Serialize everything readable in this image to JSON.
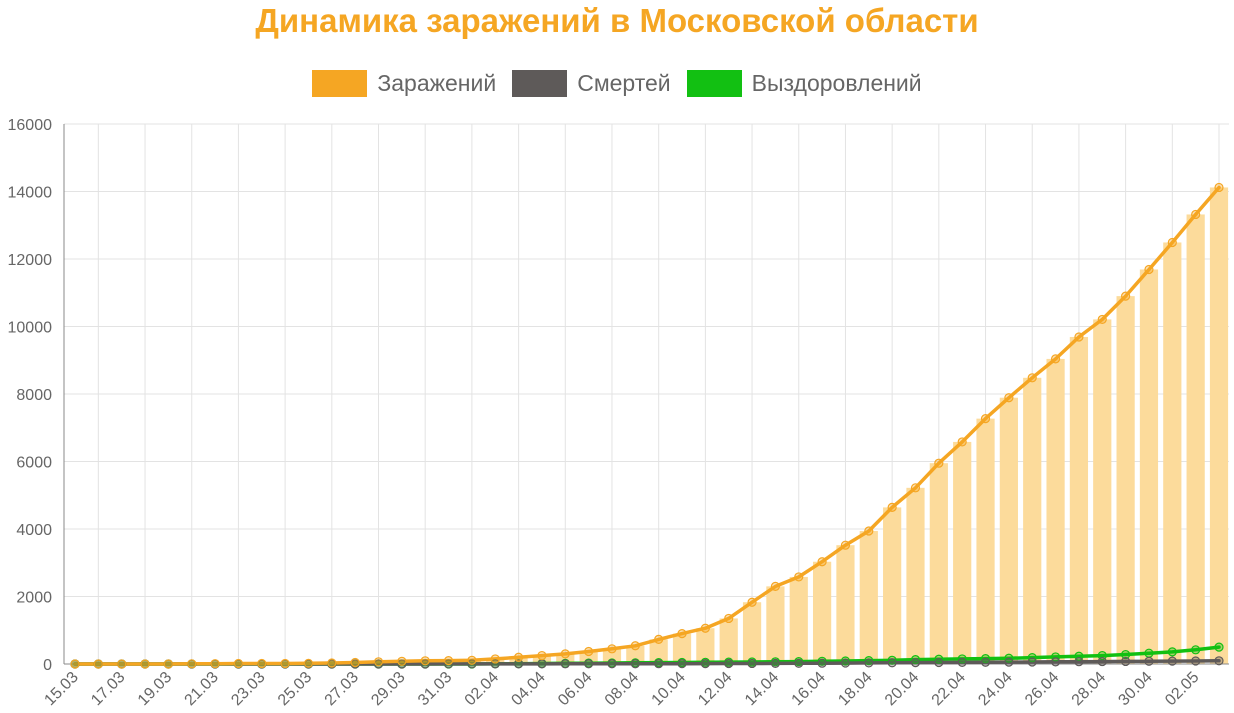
{
  "chart_data": {
    "type": "bar",
    "title": "Динамика заражений в Московской области",
    "title_color": "#F5A623",
    "xlabel": "",
    "ylabel": "",
    "ylim": [
      0,
      16000
    ],
    "yticks": [
      0,
      2000,
      4000,
      6000,
      8000,
      10000,
      12000,
      14000,
      16000
    ],
    "grid": true,
    "legend_position": "top-center",
    "categories": [
      "15.03",
      "16.03",
      "17.03",
      "18.03",
      "19.03",
      "20.03",
      "21.03",
      "22.03",
      "23.03",
      "24.03",
      "25.03",
      "26.03",
      "27.03",
      "28.03",
      "29.03",
      "30.03",
      "31.03",
      "01.04",
      "02.04",
      "03.04",
      "04.04",
      "05.04",
      "06.04",
      "07.04",
      "08.04",
      "09.04",
      "10.04",
      "11.04",
      "12.04",
      "13.04",
      "14.04",
      "15.04",
      "16.04",
      "17.04",
      "18.04",
      "19.04",
      "20.04",
      "21.04",
      "22.04",
      "23.04",
      "24.04",
      "25.04",
      "26.04",
      "27.04",
      "28.04",
      "29.04",
      "30.04",
      "01.05",
      "02.05",
      "03.05"
    ],
    "tick_labels": [
      "15.03",
      "17.03",
      "19.03",
      "21.03",
      "23.03",
      "25.03",
      "27.03",
      "29.03",
      "31.03",
      "02.04",
      "04.04",
      "06.04",
      "08.04",
      "10.04",
      "12.04",
      "14.04",
      "16.04",
      "18.04",
      "20.04",
      "22.04",
      "24.04",
      "26.04",
      "28.04",
      "30.04",
      "02.05"
    ],
    "series": [
      {
        "name": "Заражений",
        "color": "#F5A623",
        "bar_color": "#FCDB9B",
        "values": [
          0,
          0,
          0,
          0,
          0,
          5,
          10,
          15,
          15,
          15,
          20,
          30,
          45,
          65,
          80,
          95,
          100,
          110,
          150,
          200,
          250,
          300,
          370,
          450,
          540,
          730,
          900,
          1060,
          1350,
          1830,
          2300,
          2580,
          3030,
          3520,
          3940,
          4640,
          5220,
          5950,
          6580,
          7270,
          7890,
          8480,
          9040,
          9690,
          10210,
          10900,
          11690,
          12490,
          13320,
          14120
        ]
      },
      {
        "name": "Смертей",
        "color": "#5E5A59",
        "values": [
          0,
          0,
          0,
          0,
          0,
          0,
          0,
          0,
          0,
          0,
          0,
          0,
          0,
          0,
          1,
          1,
          2,
          2,
          3,
          3,
          4,
          5,
          6,
          7,
          8,
          9,
          10,
          12,
          14,
          16,
          18,
          21,
          24,
          28,
          32,
          36,
          40,
          44,
          48,
          52,
          56,
          60,
          64,
          68,
          72,
          76,
          80,
          85,
          90,
          95
        ]
      },
      {
        "name": "Выздоровлений",
        "color": "#12C012",
        "values": [
          0,
          0,
          0,
          0,
          0,
          0,
          0,
          0,
          0,
          0,
          0,
          0,
          0,
          0,
          0,
          0,
          0,
          0,
          5,
          10,
          15,
          20,
          25,
          30,
          35,
          40,
          45,
          50,
          55,
          60,
          65,
          70,
          80,
          90,
          100,
          110,
          130,
          140,
          150,
          160,
          170,
          190,
          210,
          230,
          250,
          280,
          320,
          360,
          420,
          500
        ]
      }
    ]
  }
}
